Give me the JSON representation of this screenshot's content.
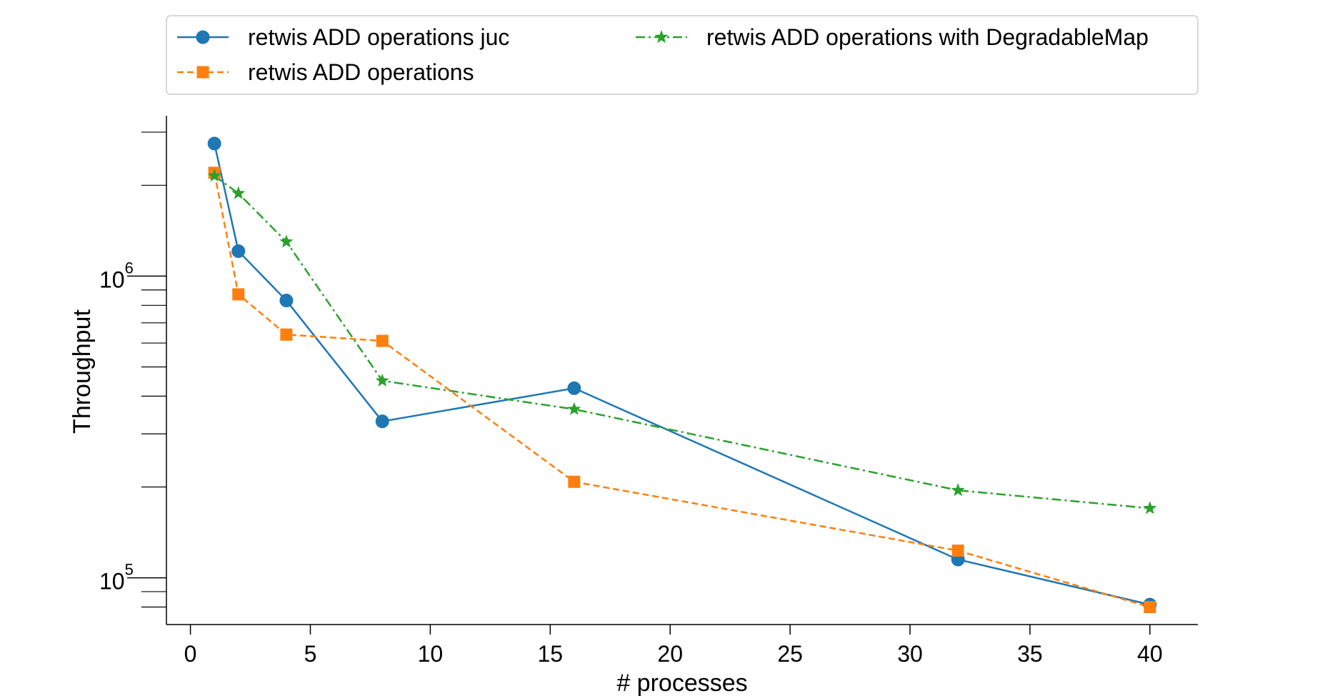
{
  "chart_data": {
    "type": "line",
    "title": "",
    "xlabel": "# processes",
    "ylabel": "Throughput",
    "x": [
      1,
      2,
      4,
      8,
      16,
      32,
      40
    ],
    "xlim": [
      -1,
      42
    ],
    "x_ticks": [
      0,
      5,
      10,
      15,
      20,
      25,
      30,
      35,
      40
    ],
    "y_scale": "log",
    "ylim": [
      70000,
      3400000
    ],
    "y_major_ticks": [
      {
        "value": 100000,
        "base": "10",
        "exp": "5"
      },
      {
        "value": 1000000,
        "base": "10",
        "exp": "6"
      }
    ],
    "y_minor_ticks": [
      80000,
      90000,
      200000,
      300000,
      400000,
      500000,
      600000,
      700000,
      800000,
      900000,
      2000000,
      3000000
    ],
    "grid": false,
    "legend_position": "top",
    "series": [
      {
        "name": "retwis ADD operations juc",
        "color": "#1f77b4",
        "line_style": "solid",
        "marker": "circle",
        "values": [
          2750000,
          1210000,
          830000,
          330000,
          425000,
          115000,
          81500
        ]
      },
      {
        "name": "retwis ADD operations",
        "color": "#ff7f0e",
        "line_style": "dashed",
        "marker": "square",
        "values": [
          2200000,
          870000,
          640000,
          610000,
          208000,
          123000,
          80000
        ]
      },
      {
        "name": "retwis ADD operations with DegradableMap",
        "color": "#2ca02c",
        "line_style": "dashdot",
        "marker": "star",
        "values": [
          2150000,
          1880000,
          1300000,
          450000,
          362000,
          195000,
          170000
        ]
      }
    ]
  }
}
